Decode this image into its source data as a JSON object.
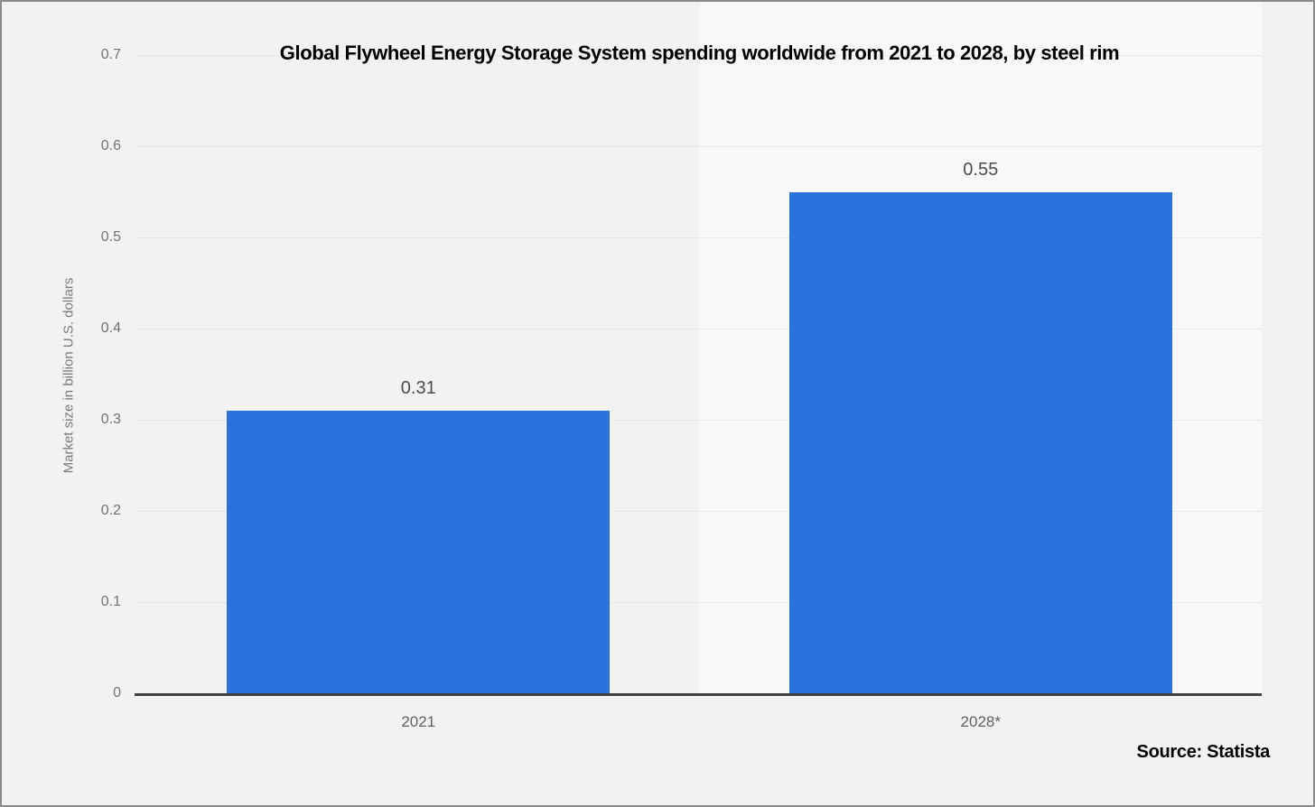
{
  "window": {
    "background": "#f2f2f2",
    "border_color": "#8a8a8a"
  },
  "chart_data": {
    "type": "bar",
    "title": "Global Flywheel Energy Storage System spending worldwide from 2021 to 2028, by steel rim",
    "categories": [
      "2021",
      "2028*"
    ],
    "values": [
      0.31,
      0.55
    ],
    "value_labels": [
      "0.31",
      "0.55"
    ],
    "xlabel": "",
    "ylabel": "Market size in billion U.S. dollars",
    "ylim": [
      0,
      0.7
    ],
    "ytick_step": 0.1,
    "ytick_labels": [
      "0",
      "0.1",
      "0.2",
      "0.3",
      "0.4",
      "0.5",
      "0.6",
      "0.7"
    ],
    "grid": "horizontal-dotted",
    "legend": "none",
    "bar_color": "#2b73dc",
    "highlighted_category_index": 1,
    "highlight_color": "#f7f8f7",
    "axis_line_color": "#424242",
    "gridline_color": "#d9d9d9",
    "tick_text_color": "#737373",
    "value_label_color": "#4d4d4d"
  },
  "source": {
    "label": "Source: Statista"
  }
}
